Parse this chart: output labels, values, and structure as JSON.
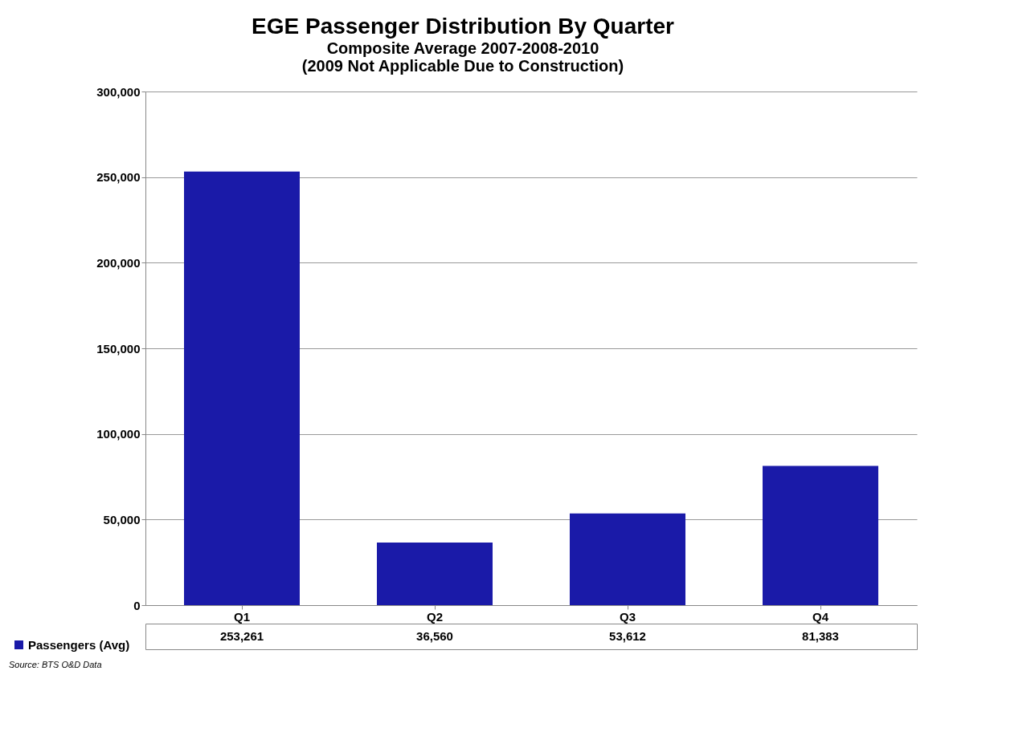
{
  "chart_data": {
    "type": "bar",
    "title": "EGE Passenger Distribution By Quarter",
    "subtitle": "Composite Average 2007-2008-2010",
    "annotations": [
      "(2009 Not Applicable Due to Construction)",
      "Source: BTS O&D Data"
    ],
    "categories": [
      "Q1",
      "Q2",
      "Q3",
      "Q4"
    ],
    "series": [
      {
        "name": "Passengers (Avg)",
        "color": "#1a1aa8",
        "values": [
          253261,
          36560,
          53612,
          81383
        ],
        "value_labels": [
          "253,261",
          "36,560",
          "53,612",
          "81,383"
        ]
      }
    ],
    "ylim": [
      0,
      300000
    ],
    "yticks": [
      0,
      {
        "value": 50000,
        "label": "50,000"
      },
      {
        "value": 100000,
        "label": "100,000"
      },
      {
        "value": 150000,
        "label": "150,000"
      },
      {
        "value": 200000,
        "label": "200,000"
      },
      {
        "value": 250000,
        "label": "250,000"
      },
      {
        "value": 300000,
        "label": "300,000"
      }
    ],
    "grid": "y",
    "legend": "bottom left"
  }
}
